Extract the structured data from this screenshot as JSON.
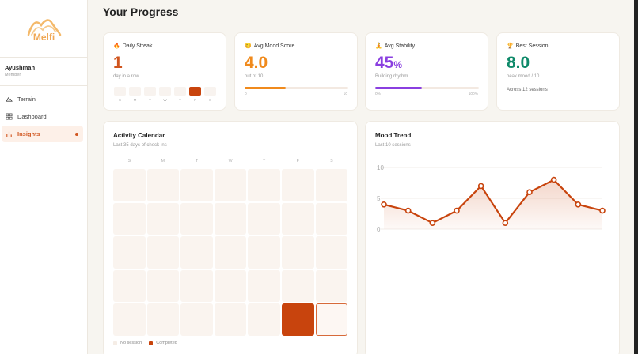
{
  "app": {
    "name": "Melfi"
  },
  "user": {
    "name": "Ayushman",
    "role": "Member"
  },
  "nav": [
    {
      "label": "Terrain",
      "icon": "mountain-icon",
      "active": false
    },
    {
      "label": "Dashboard",
      "icon": "grid-icon",
      "active": false
    },
    {
      "label": "Insights",
      "icon": "bar-chart-icon",
      "active": true
    }
  ],
  "page": {
    "title": "Your Progress"
  },
  "stats": {
    "streak": {
      "icon": "🔥",
      "label": "Daily Streak",
      "value": "1",
      "sub": "day in a row",
      "color": "#d0551e",
      "week_labels": [
        "S",
        "M",
        "T",
        "W",
        "T",
        "F",
        "S"
      ],
      "week_completed": [
        false,
        false,
        false,
        false,
        false,
        true,
        false
      ]
    },
    "mood": {
      "icon": "😊",
      "label": "Avg Mood Score",
      "value": "4.0",
      "sub": "out of 10",
      "color": "#f08a1c",
      "progress": 0.4,
      "min_label": "0",
      "max_label": "10"
    },
    "stability": {
      "icon": "🧘",
      "label": "Avg Stability",
      "value": "45",
      "unit": "%",
      "sub": "Building rhythm",
      "color": "#8a3fe0",
      "progress": 0.45,
      "min_label": "0%",
      "max_label": "100%"
    },
    "best": {
      "icon": "🏆",
      "label": "Best Session",
      "value": "8.0",
      "sub": "peak mood / 10",
      "note": "Across 12 sessions",
      "color": "#0f8a6a"
    }
  },
  "calendar": {
    "title": "Activity Calendar",
    "subtitle": "Last 35 days of check-ins",
    "day_labels": [
      "S",
      "M",
      "T",
      "W",
      "T",
      "F",
      "S"
    ],
    "completed_index": 33,
    "today_index": 34,
    "legend": {
      "none": "No session",
      "done": "Completed"
    }
  },
  "mood_trend": {
    "title": "Mood Trend",
    "subtitle": "Last 10 sessions",
    "chart_data": {
      "type": "area",
      "x": [
        1,
        2,
        3,
        4,
        5,
        6,
        7,
        8,
        9,
        10
      ],
      "values": [
        4,
        3,
        1,
        3,
        7,
        1,
        6,
        8,
        4,
        3
      ],
      "ylim": [
        0,
        10
      ],
      "yticks": [
        "10",
        "5",
        "0"
      ],
      "grid": true,
      "color": "#c8440d"
    }
  }
}
